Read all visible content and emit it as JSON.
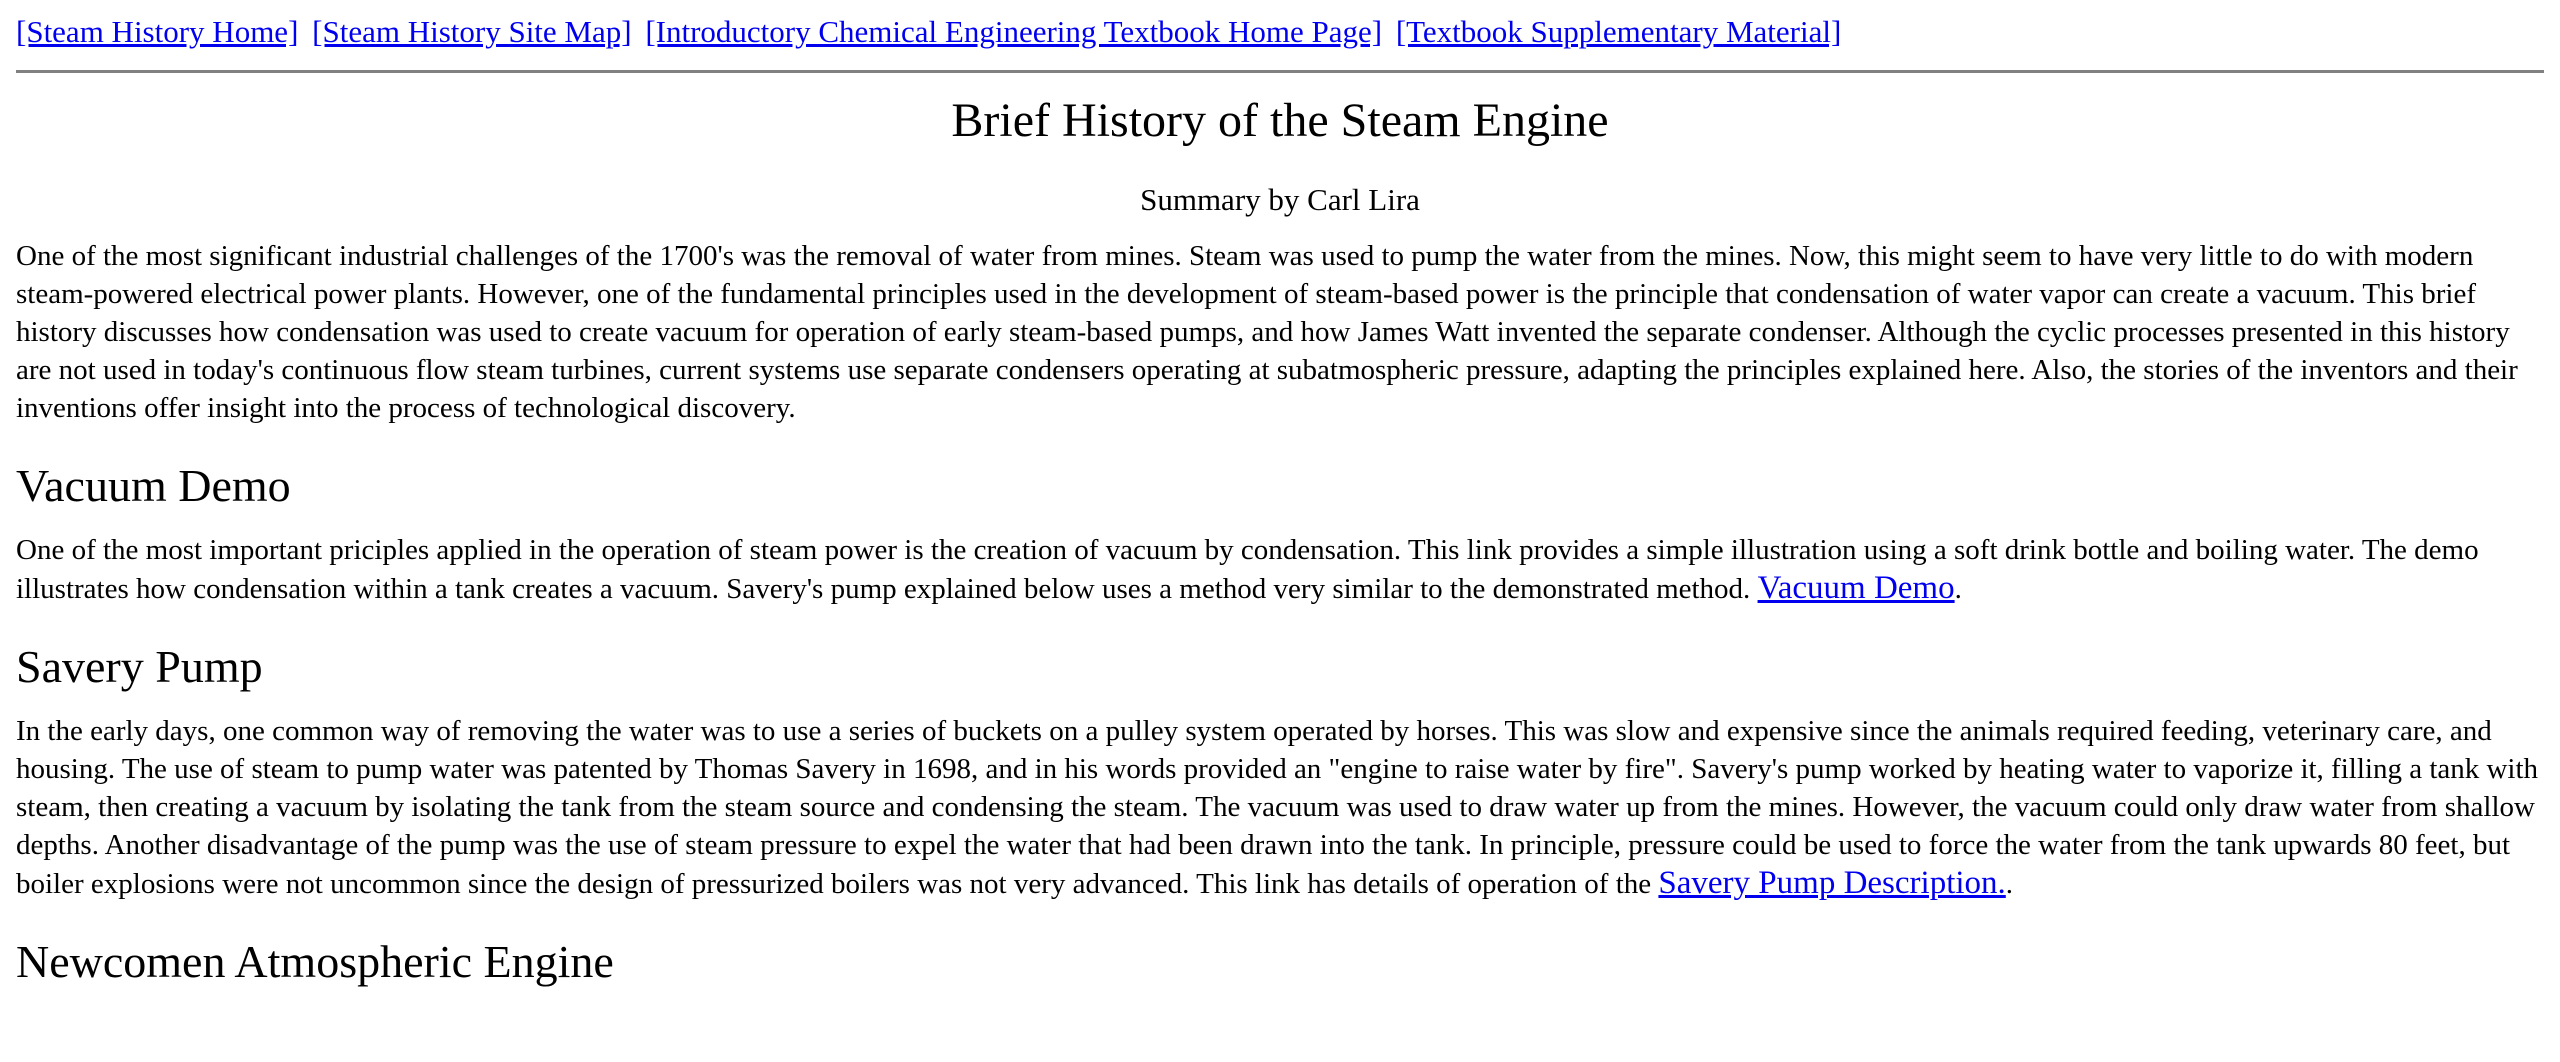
{
  "nav": {
    "links": [
      "[Steam History Home]",
      "[Steam History Site Map]",
      "[Introductory Chemical Engineering Textbook Home Page]",
      "[Textbook Supplementary Material]"
    ]
  },
  "header": {
    "title": "Brief History of the Steam Engine",
    "byline": "Summary by Carl Lira"
  },
  "intro": {
    "text": "One of the most significant industrial challenges of the 1700's was the removal of water from mines. Steam was used to pump the water from the mines. Now, this might seem to have very little to do with modern steam-powered electrical power plants. However, one of the fundamental principles used in the development of steam-based power is the principle that condensation of water vapor can create a vacuum. This brief history discusses how condensation was used to create vacuum for operation of early steam-based pumps, and how James Watt invented the separate condenser. Although the cyclic processes presented in this history are not used in today's continuous flow steam turbines, current systems use separate condensers operating at subatmospheric pressure, adapting the principles explained here. Also, the stories of the inventors and their inventions offer insight into the process of technological discovery."
  },
  "vacuum_demo": {
    "heading": "Vacuum Demo",
    "text": "One of the most important priciples applied in the operation of steam power is the creation of vacuum by condensation. This link provides a simple illustration using a soft drink bottle and boiling water. The demo illustrates how condensation within a tank creates a vacuum. Savery's pump explained below uses a method very similar to the demonstrated method. ",
    "link_label": "Vacuum Demo",
    "trailing": "."
  },
  "savery_pump": {
    "heading": "Savery Pump",
    "text": "In the early days, one common way of removing the water was to use a series of buckets on a pulley system operated by horses. This was slow and expensive since the animals required feeding, veterinary care, and housing. The use of steam to pump water was patented by Thomas Savery in 1698, and in his words provided an \"engine to raise water by fire\". Savery's pump worked by heating water to vaporize it, filling a tank with steam, then creating a vacuum by isolating the tank from the steam source and condensing the steam. The vacuum was used to draw water up from the mines. However, the vacuum could only draw water from shallow depths. Another disadvantage of the pump was the use of steam pressure to expel the water that had been drawn into the tank. In principle, pressure could be used to force the water from the tank upwards 80 feet, but boiler explosions were not uncommon since the design of pressurized boilers was not very advanced. This link has details of operation of the ",
    "link_label": "Savery Pump Description.",
    "trailing": "."
  },
  "next_section": {
    "heading": "Newcomen Atmospheric Engine"
  },
  "colors": {
    "link": "#0000ee",
    "rule": "#808080",
    "text": "#000000",
    "background": "#ffffff"
  }
}
